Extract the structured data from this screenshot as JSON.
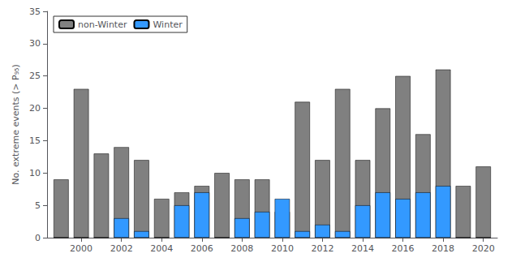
{
  "chart_data": {
    "type": "bar",
    "stacked": true,
    "x": [
      1999,
      2000,
      2001,
      2002,
      2003,
      2004,
      2005,
      2006,
      2007,
      2008,
      2009,
      2010,
      2011,
      2012,
      2013,
      2014,
      2015,
      2016,
      2017,
      2018,
      2019,
      2020
    ],
    "series": [
      {
        "name": "non-Winter",
        "color": "#808080",
        "values": [
          9,
          23,
          13,
          14,
          12,
          6,
          7,
          8,
          10,
          9,
          9,
          4,
          21,
          12,
          23,
          12,
          20,
          25,
          16,
          26,
          8,
          11
        ]
      },
      {
        "name": "Winter",
        "color": "#3399FF",
        "values": [
          0,
          0,
          0,
          3,
          1,
          0,
          5,
          7,
          0,
          3,
          4,
          6,
          1,
          2,
          1,
          5,
          7,
          6,
          7,
          8,
          0,
          0
        ]
      }
    ],
    "xlim": [
      1998.3,
      2020.7
    ],
    "xticks": [
      2000,
      2002,
      2004,
      2006,
      2008,
      2010,
      2012,
      2014,
      2016,
      2018,
      2020
    ],
    "ylim": [
      0,
      35
    ],
    "yticks": [
      0,
      5,
      10,
      15,
      20,
      25,
      30,
      35
    ],
    "ylabel": "No. extreme events (> P₉₅)",
    "legend": "upper left",
    "grid": false
  }
}
